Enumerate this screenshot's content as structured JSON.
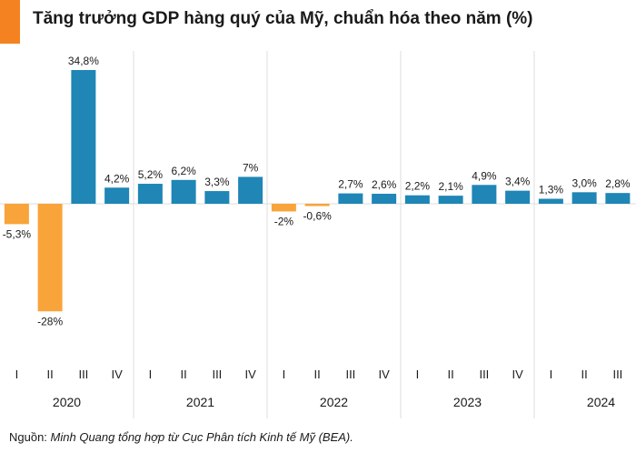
{
  "chart_data": {
    "type": "bar",
    "title": "Tăng trưởng GDP hàng quý của Mỹ, chuẩn hóa theo năm (%)",
    "ylabel": "",
    "xlabel": "",
    "ylim": [
      -28,
      34.8
    ],
    "grid": false,
    "years": [
      {
        "year": "2020",
        "quarters": [
          {
            "q": "I",
            "value": -5.3,
            "label": "-5,3%"
          },
          {
            "q": "II",
            "value": -28,
            "label": "-28%"
          },
          {
            "q": "III",
            "value": 34.8,
            "label": "34,8%"
          },
          {
            "q": "IV",
            "value": 4.2,
            "label": "4,2%"
          }
        ]
      },
      {
        "year": "2021",
        "quarters": [
          {
            "q": "I",
            "value": 5.2,
            "label": "5,2%"
          },
          {
            "q": "II",
            "value": 6.2,
            "label": "6,2%"
          },
          {
            "q": "III",
            "value": 3.3,
            "label": "3,3%"
          },
          {
            "q": "IV",
            "value": 7.0,
            "label": "7%"
          }
        ]
      },
      {
        "year": "2022",
        "quarters": [
          {
            "q": "I",
            "value": -2.0,
            "label": "-2%"
          },
          {
            "q": "II",
            "value": -0.6,
            "label": "-0,6%"
          },
          {
            "q": "III",
            "value": 2.7,
            "label": "2,7%"
          },
          {
            "q": "IV",
            "value": 2.6,
            "label": "2,6%"
          }
        ]
      },
      {
        "year": "2023",
        "quarters": [
          {
            "q": "I",
            "value": 2.2,
            "label": "2,2%"
          },
          {
            "q": "II",
            "value": 2.1,
            "label": "2,1%"
          },
          {
            "q": "III",
            "value": 4.9,
            "label": "4,9%"
          },
          {
            "q": "IV",
            "value": 3.4,
            "label": "3,4%"
          }
        ]
      },
      {
        "year": "2024",
        "quarters": [
          {
            "q": "I",
            "value": 1.3,
            "label": "1,3%"
          },
          {
            "q": "II",
            "value": 3.0,
            "label": "3,0%"
          },
          {
            "q": "III",
            "value": 2.8,
            "label": "2,8%"
          }
        ]
      }
    ],
    "colors": {
      "positive": "#1f86b6",
      "negative": "#f9a43a",
      "grid": "#dddddd",
      "accent": "#f58220"
    }
  },
  "source": {
    "prefix": "Nguồn: ",
    "text": "Minh Quang tổng hợp từ Cục Phân tích Kinh tế Mỹ (BEA)."
  }
}
